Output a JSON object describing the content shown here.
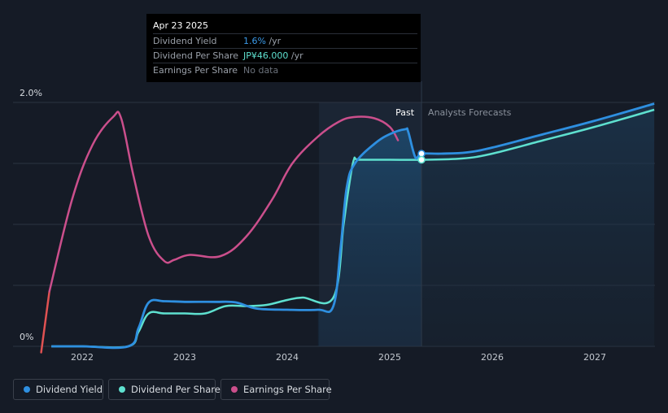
{
  "chart_data": {
    "type": "line",
    "x_ticks": [
      "2022",
      "2023",
      "2024",
      "2025",
      "2026",
      "2027"
    ],
    "y_ticks": [
      "2.0%",
      "0%"
    ],
    "ylim": [
      0,
      2.0
    ],
    "xlim": [
      2021.6,
      2027.58
    ],
    "past_label": "Past",
    "forecast_label": "Analysts Forecasts",
    "past_forecast_boundary": 2025.31,
    "highlight_start": 2024.31,
    "grid": true,
    "legend_position": "bottom-left",
    "series": [
      {
        "name": "Dividend Yield",
        "color": "#2e8fe0",
        "points": [
          [
            2021.7,
            0
          ],
          [
            2022.0,
            0
          ],
          [
            2022.45,
            0
          ],
          [
            2022.55,
            0.15
          ],
          [
            2022.65,
            0.36
          ],
          [
            2022.8,
            0.37
          ],
          [
            2023.0,
            0.365
          ],
          [
            2023.3,
            0.365
          ],
          [
            2023.5,
            0.36
          ],
          [
            2023.7,
            0.31
          ],
          [
            2024.0,
            0.3
          ],
          [
            2024.3,
            0.3
          ],
          [
            2024.45,
            0.33
          ],
          [
            2024.52,
            0.8
          ],
          [
            2024.58,
            1.3
          ],
          [
            2024.66,
            1.5
          ],
          [
            2024.85,
            1.66
          ],
          [
            2025.0,
            1.74
          ],
          [
            2025.15,
            1.78
          ],
          [
            2025.18,
            1.76
          ],
          [
            2025.25,
            1.55
          ],
          [
            2025.31,
            1.58
          ],
          [
            2025.5,
            1.58
          ],
          [
            2025.75,
            1.59
          ],
          [
            2026.0,
            1.63
          ],
          [
            2026.5,
            1.74
          ],
          [
            2027.0,
            1.85
          ],
          [
            2027.58,
            1.99
          ]
        ]
      },
      {
        "name": "Dividend Per Share",
        "color": "#5ee0cf",
        "points": [
          [
            2021.7,
            0
          ],
          [
            2022.0,
            0
          ],
          [
            2022.45,
            0
          ],
          [
            2022.55,
            0.12
          ],
          [
            2022.65,
            0.27
          ],
          [
            2022.8,
            0.27
          ],
          [
            2023.0,
            0.27
          ],
          [
            2023.2,
            0.27
          ],
          [
            2023.4,
            0.33
          ],
          [
            2023.6,
            0.33
          ],
          [
            2023.8,
            0.34
          ],
          [
            2024.0,
            0.38
          ],
          [
            2024.15,
            0.4
          ],
          [
            2024.45,
            0.4
          ],
          [
            2024.55,
            1.0
          ],
          [
            2024.6,
            1.3
          ],
          [
            2024.65,
            1.53
          ],
          [
            2024.7,
            1.53
          ],
          [
            2025.0,
            1.53
          ],
          [
            2025.31,
            1.53
          ],
          [
            2025.7,
            1.54
          ],
          [
            2026.0,
            1.58
          ],
          [
            2026.5,
            1.69
          ],
          [
            2027.0,
            1.8
          ],
          [
            2027.58,
            1.94
          ]
        ]
      },
      {
        "name": "Earnings Per Share",
        "color": "#cb4f8c",
        "negative_color": "#e05252",
        "points": [
          [
            2021.6,
            -0.05
          ],
          [
            2021.68,
            0.45
          ],
          [
            2021.9,
            1.2
          ],
          [
            2022.1,
            1.65
          ],
          [
            2022.3,
            1.88
          ],
          [
            2022.38,
            1.87
          ],
          [
            2022.5,
            1.4
          ],
          [
            2022.65,
            0.9
          ],
          [
            2022.8,
            0.7
          ],
          [
            2022.9,
            0.71
          ],
          [
            2023.05,
            0.75
          ],
          [
            2023.35,
            0.74
          ],
          [
            2023.6,
            0.9
          ],
          [
            2023.85,
            1.2
          ],
          [
            2024.05,
            1.5
          ],
          [
            2024.3,
            1.72
          ],
          [
            2024.5,
            1.84
          ],
          [
            2024.65,
            1.88
          ],
          [
            2024.85,
            1.87
          ],
          [
            2025.0,
            1.8
          ],
          [
            2025.08,
            1.69
          ]
        ]
      }
    ]
  },
  "tooltip": {
    "date": "Apr 23 2025",
    "rows": [
      {
        "label": "Dividend Yield",
        "value": "1.6%",
        "unit": " /yr",
        "color": "#3b9ae8"
      },
      {
        "label": "Dividend Per Share",
        "value": "JP¥46.000",
        "unit": " /yr",
        "color": "#5ee0cf"
      },
      {
        "label": "Earnings Per Share",
        "value": "No data",
        "unit": "",
        "color": "#6c727c"
      }
    ]
  },
  "legend": [
    {
      "label": "Dividend Yield",
      "color": "#2e8fe0"
    },
    {
      "label": "Dividend Per Share",
      "color": "#5ee0cf"
    },
    {
      "label": "Earnings Per Share",
      "color": "#cb4f8c"
    }
  ]
}
